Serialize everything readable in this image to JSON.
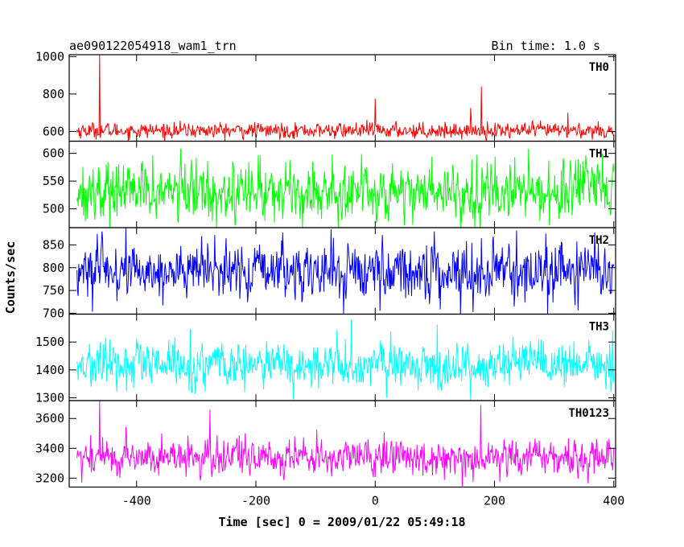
{
  "header": {
    "left": "ae090122054918_wam1_trn",
    "right": "Bin time: 1.0 s"
  },
  "chart_data": {
    "type": "line",
    "xlabel": "Time [sec] 0 = 2009/01/22 05:49:18",
    "ylabel": "Counts/sec",
    "xlim": [
      -513,
      403
    ],
    "xticks": [
      -400,
      -200,
      0,
      200,
      400
    ],
    "x_range": [
      -500,
      400
    ],
    "bin_time_s": 1.0,
    "panels": [
      {
        "label": "TH0",
        "color": "#ff0000",
        "ylim": [
          548,
          1010
        ],
        "yticks": [
          600,
          800,
          1000
        ],
        "mean": 605,
        "noise": 20,
        "spikes": [
          {
            "x": -462,
            "y": 1010
          },
          {
            "x": 0,
            "y": 775
          },
          {
            "x": 160,
            "y": 725
          },
          {
            "x": 178,
            "y": 840
          },
          {
            "x": 323,
            "y": 700
          }
        ]
      },
      {
        "label": "TH1",
        "color": "#00ff00",
        "ylim": [
          466,
          622
        ],
        "yticks": [
          500,
          550,
          600
        ],
        "mean": 532,
        "noise": 26,
        "spikes": []
      },
      {
        "label": "TH2",
        "color": "#0000ff",
        "ylim": [
          698,
          888
        ],
        "yticks": [
          700,
          750,
          800,
          850
        ],
        "mean": 792,
        "noise": 30,
        "spikes": []
      },
      {
        "label": "TH3",
        "color": "#00ffff",
        "ylim": [
          1290,
          1600
        ],
        "yticks": [
          1300,
          1400,
          1500
        ],
        "mean": 1415,
        "noise": 40,
        "spikes": [
          {
            "x": -40,
            "y": 1580
          }
        ]
      },
      {
        "label": "TH0123",
        "color": "#ff00ff",
        "ylim": [
          3140,
          3720
        ],
        "yticks": [
          3200,
          3400,
          3600
        ],
        "mean": 3340,
        "noise": 60,
        "spikes": [
          {
            "x": -462,
            "y": 3720
          },
          {
            "x": -277,
            "y": 3660
          },
          {
            "x": 177,
            "y": 3690
          }
        ]
      }
    ]
  }
}
